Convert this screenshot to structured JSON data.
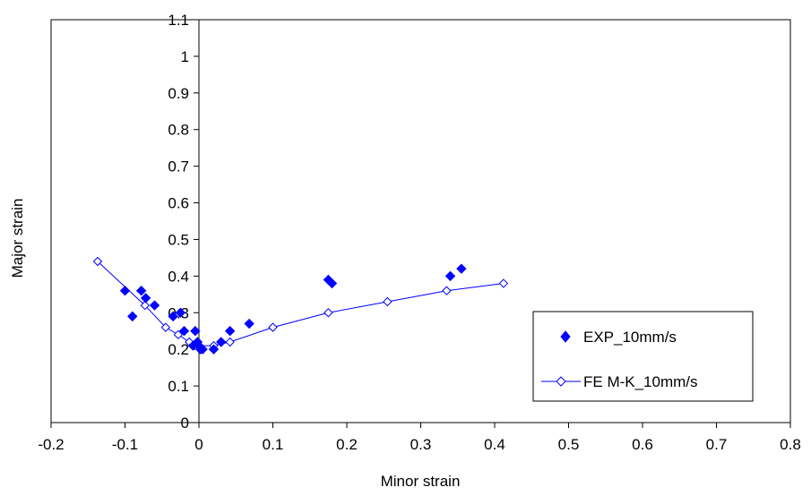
{
  "chart_data": {
    "type": "scatter",
    "title": "",
    "xlabel": "Minor strain",
    "ylabel": "Major strain",
    "xlim": [
      -0.2,
      0.8
    ],
    "ylim": [
      0,
      1.1
    ],
    "xticks": [
      -0.2,
      -0.1,
      0,
      0.1,
      0.2,
      0.3,
      0.4,
      0.5,
      0.6,
      0.7,
      0.8
    ],
    "yticks": [
      0,
      0.1,
      0.2,
      0.3,
      0.4,
      0.5,
      0.6,
      0.7,
      0.8,
      0.9,
      1,
      1.1
    ],
    "xtick_labels": [
      "-0.2",
      "-0.1",
      "0",
      "0.1",
      "0.2",
      "0.3",
      "0.4",
      "0.5",
      "0.6",
      "0.7",
      "0.8"
    ],
    "ytick_labels": [
      "0",
      "0.1",
      "0.2",
      "0.3",
      "0.4",
      "0.5",
      "0.6",
      "0.7",
      "0.8",
      "0.9",
      "1",
      "1.1"
    ],
    "grid": false,
    "legend_position": "bottom-right",
    "color": "#0000ff",
    "series": [
      {
        "name": "EXP_10mm/s",
        "style": "filled-diamond-markers",
        "points": [
          [
            -0.1,
            0.36
          ],
          [
            -0.09,
            0.29
          ],
          [
            -0.078,
            0.36
          ],
          [
            -0.072,
            0.34
          ],
          [
            -0.06,
            0.32
          ],
          [
            -0.035,
            0.29
          ],
          [
            -0.025,
            0.3
          ],
          [
            -0.02,
            0.25
          ],
          [
            -0.008,
            0.21
          ],
          [
            -0.005,
            0.25
          ],
          [
            -0.002,
            0.22
          ],
          [
            0,
            0.21
          ],
          [
            0.002,
            0.2
          ],
          [
            0.005,
            0.2
          ],
          [
            0.02,
            0.2
          ],
          [
            0.03,
            0.22
          ],
          [
            0.042,
            0.25
          ],
          [
            0.068,
            0.27
          ],
          [
            0.175,
            0.39
          ],
          [
            0.18,
            0.38
          ],
          [
            0.34,
            0.4
          ],
          [
            0.355,
            0.42
          ]
        ]
      },
      {
        "name": "FE M-K_10mm/s",
        "style": "line-with-open-diamond-markers",
        "points": [
          [
            -0.137,
            0.44
          ],
          [
            -0.073,
            0.32
          ],
          [
            -0.045,
            0.26
          ],
          [
            -0.028,
            0.24
          ],
          [
            -0.013,
            0.22
          ],
          [
            0,
            0.21
          ],
          [
            0.02,
            0.21
          ],
          [
            0.042,
            0.22
          ],
          [
            0.1,
            0.26
          ],
          [
            0.175,
            0.3
          ],
          [
            0.255,
            0.33
          ],
          [
            0.335,
            0.36
          ],
          [
            0.412,
            0.38
          ]
        ]
      }
    ]
  }
}
